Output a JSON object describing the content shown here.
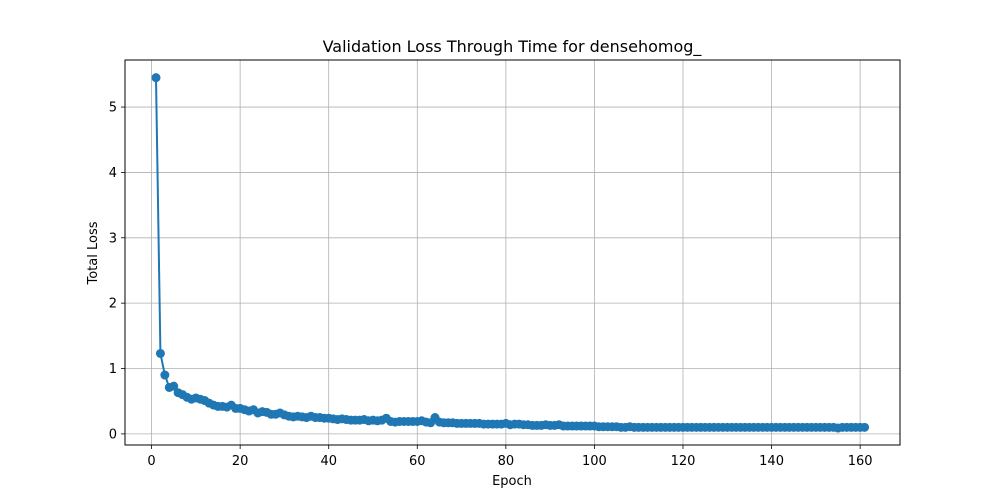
{
  "chart_data": {
    "type": "line",
    "title": "Validation Loss Through Time for densehomog_",
    "xlabel": "Epoch",
    "ylabel": "Total Loss",
    "xlim": [
      -6,
      169
    ],
    "ylim": [
      -0.17,
      5.72
    ],
    "xticks": [
      0,
      20,
      40,
      60,
      80,
      100,
      120,
      140,
      160
    ],
    "yticks": [
      0,
      1,
      2,
      3,
      4,
      5
    ],
    "grid": true,
    "legend": "none",
    "color": "#1f77b4",
    "series": [
      {
        "x": [
          1,
          2,
          3,
          4,
          5,
          6,
          7,
          8,
          9,
          10,
          11,
          12,
          13,
          14,
          15,
          16,
          17,
          18,
          19,
          20,
          21,
          22,
          23,
          24,
          25,
          26,
          27,
          28,
          29,
          30,
          31,
          32,
          33,
          34,
          35,
          36,
          37,
          38,
          39,
          40,
          41,
          42,
          43,
          44,
          45,
          46,
          47,
          48,
          49,
          50,
          51,
          52,
          53,
          54,
          55,
          56,
          57,
          58,
          59,
          60,
          61,
          62,
          63,
          64,
          65,
          66,
          67,
          68,
          69,
          70,
          71,
          72,
          73,
          74,
          75,
          76,
          77,
          78,
          79,
          80,
          81,
          82,
          83,
          84,
          85,
          86,
          87,
          88,
          89,
          90,
          91,
          92,
          93,
          94,
          95,
          96,
          97,
          98,
          99,
          100,
          101,
          102,
          103,
          104,
          105,
          106,
          107,
          108,
          109,
          110,
          111,
          112,
          113,
          114,
          115,
          116,
          117,
          118,
          119,
          120,
          121,
          122,
          123,
          124,
          125,
          126,
          127,
          128,
          129,
          130,
          131,
          132,
          133,
          134,
          135,
          136,
          137,
          138,
          139,
          140,
          141,
          142,
          143,
          144,
          145,
          146,
          147,
          148,
          149,
          150,
          151,
          152,
          153,
          154,
          155,
          156,
          157,
          158,
          159,
          160,
          161
        ],
        "y": [
          5.45,
          1.23,
          0.9,
          0.71,
          0.73,
          0.63,
          0.6,
          0.56,
          0.53,
          0.55,
          0.53,
          0.51,
          0.47,
          0.44,
          0.42,
          0.42,
          0.41,
          0.44,
          0.39,
          0.39,
          0.37,
          0.35,
          0.37,
          0.32,
          0.34,
          0.33,
          0.3,
          0.3,
          0.32,
          0.29,
          0.27,
          0.26,
          0.27,
          0.26,
          0.25,
          0.27,
          0.25,
          0.25,
          0.24,
          0.24,
          0.23,
          0.22,
          0.23,
          0.22,
          0.21,
          0.21,
          0.21,
          0.22,
          0.2,
          0.21,
          0.2,
          0.21,
          0.24,
          0.19,
          0.18,
          0.19,
          0.19,
          0.19,
          0.19,
          0.19,
          0.2,
          0.18,
          0.17,
          0.25,
          0.18,
          0.17,
          0.17,
          0.17,
          0.16,
          0.16,
          0.16,
          0.16,
          0.16,
          0.16,
          0.15,
          0.15,
          0.15,
          0.15,
          0.15,
          0.16,
          0.14,
          0.15,
          0.15,
          0.14,
          0.14,
          0.13,
          0.13,
          0.13,
          0.14,
          0.13,
          0.13,
          0.14,
          0.12,
          0.12,
          0.12,
          0.12,
          0.12,
          0.12,
          0.12,
          0.12,
          0.11,
          0.11,
          0.11,
          0.11,
          0.11,
          0.1,
          0.1,
          0.11,
          0.1,
          0.1,
          0.1,
          0.1,
          0.1,
          0.1,
          0.1,
          0.1,
          0.1,
          0.1,
          0.1,
          0.1,
          0.1,
          0.1,
          0.1,
          0.1,
          0.1,
          0.1,
          0.1,
          0.1,
          0.1,
          0.1,
          0.1,
          0.1,
          0.1,
          0.1,
          0.1,
          0.1,
          0.1,
          0.1,
          0.1,
          0.1,
          0.1,
          0.1,
          0.1,
          0.1,
          0.1,
          0.1,
          0.1,
          0.1,
          0.1,
          0.1,
          0.1,
          0.1,
          0.1,
          0.1,
          0.09,
          0.1,
          0.1,
          0.1,
          0.1,
          0.1,
          0.1
        ]
      }
    ]
  }
}
